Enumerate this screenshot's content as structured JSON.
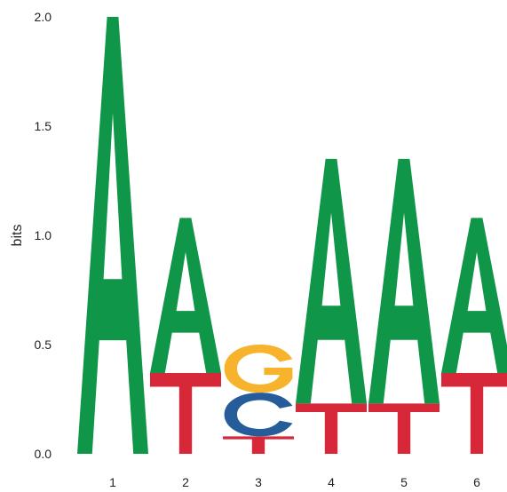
{
  "chart_data": {
    "type": "sequence-logo",
    "ylabel": "bits",
    "ylim": [
      0,
      2.0
    ],
    "yticks": [
      "0.0",
      "0.5",
      "1.0",
      "1.5",
      "2.0"
    ],
    "ytick_values": [
      0,
      0.5,
      1.0,
      1.5,
      2.0
    ],
    "xticks": [
      "1",
      "2",
      "3",
      "4",
      "5",
      "6"
    ],
    "positions": [
      {
        "label": "1",
        "letters": [
          {
            "letter": "A",
            "height": 2.0
          }
        ]
      },
      {
        "label": "2",
        "letters": [
          {
            "letter": "T",
            "height": 0.37
          },
          {
            "letter": "A",
            "height": 0.71
          }
        ]
      },
      {
        "label": "3",
        "letters": [
          {
            "letter": "T",
            "height": 0.08
          },
          {
            "letter": "C",
            "height": 0.2
          },
          {
            "letter": "G",
            "height": 0.22
          }
        ]
      },
      {
        "label": "4",
        "letters": [
          {
            "letter": "T",
            "height": 0.23
          },
          {
            "letter": "A",
            "height": 1.12
          }
        ]
      },
      {
        "label": "5",
        "letters": [
          {
            "letter": "T",
            "height": 0.23
          },
          {
            "letter": "A",
            "height": 1.12
          }
        ]
      },
      {
        "label": "6",
        "letters": [
          {
            "letter": "T",
            "height": 0.37
          },
          {
            "letter": "A",
            "height": 0.71
          }
        ]
      }
    ],
    "colors": {
      "A": "#109648",
      "C": "#255C99",
      "G": "#F7B32B",
      "T": "#D62839"
    }
  }
}
